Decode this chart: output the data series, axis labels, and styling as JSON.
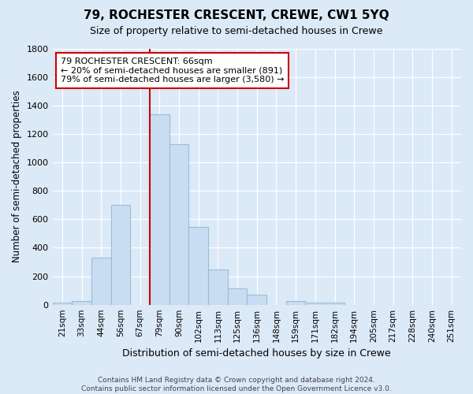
{
  "title": "79, ROCHESTER CRESCENT, CREWE, CW1 5YQ",
  "subtitle": "Size of property relative to semi-detached houses in Crewe",
  "xlabel": "Distribution of semi-detached houses by size in Crewe",
  "ylabel": "Number of semi-detached properties",
  "footer_line1": "Contains HM Land Registry data © Crown copyright and database right 2024.",
  "footer_line2": "Contains public sector information licensed under the Open Government Licence v3.0.",
  "bin_labels": [
    "21sqm",
    "33sqm",
    "44sqm",
    "56sqm",
    "67sqm",
    "79sqm",
    "90sqm",
    "102sqm",
    "113sqm",
    "125sqm",
    "136sqm",
    "148sqm",
    "159sqm",
    "171sqm",
    "182sqm",
    "194sqm",
    "205sqm",
    "217sqm",
    "228sqm",
    "240sqm",
    "251sqm"
  ],
  "bar_heights": [
    15,
    28,
    330,
    700,
    0,
    1340,
    1130,
    545,
    245,
    115,
    70,
    0,
    25,
    15,
    15,
    0,
    0,
    0,
    0,
    0,
    0
  ],
  "bar_color": "#c9ddf2",
  "bar_edge_color": "#9abdd8",
  "background_color": "#dce9f7",
  "grid_color": "#ffffff",
  "red_line_bin_index": 5,
  "red_line_color": "#cc0000",
  "annotation_title": "79 ROCHESTER CRESCENT: 66sqm",
  "annotation_line1": "← 20% of semi-detached houses are smaller (891)",
  "annotation_line2": "79% of semi-detached houses are larger (3,580) →",
  "annotation_box_facecolor": "#ffffff",
  "annotation_box_edgecolor": "#cc0000",
  "ylim": [
    0,
    1800
  ],
  "yticks": [
    0,
    200,
    400,
    600,
    800,
    1000,
    1200,
    1400,
    1600,
    1800
  ]
}
